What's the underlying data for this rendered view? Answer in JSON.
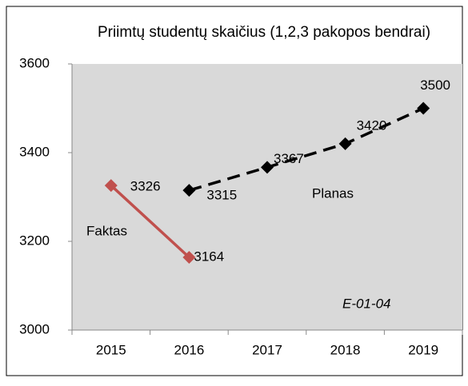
{
  "chart_data": {
    "type": "line",
    "title": "Priimtų studentų skaičius (1,2,3 pakopos bendrai)",
    "categories": [
      "2015",
      "2016",
      "2017",
      "2018",
      "2019"
    ],
    "series": [
      {
        "name": "Faktas",
        "color": "#c0504d",
        "dashed": false,
        "values": [
          3326,
          3164,
          null,
          null,
          null
        ]
      },
      {
        "name": "Planas",
        "color": "#000000",
        "dashed": true,
        "values": [
          null,
          3315,
          3367,
          3420,
          3500
        ]
      }
    ],
    "ylim": [
      3000,
      3600
    ],
    "yticks": [
      3000,
      3200,
      3400,
      3600
    ],
    "annotation": "E-01-04",
    "plot_background": "#d9d9d9"
  }
}
